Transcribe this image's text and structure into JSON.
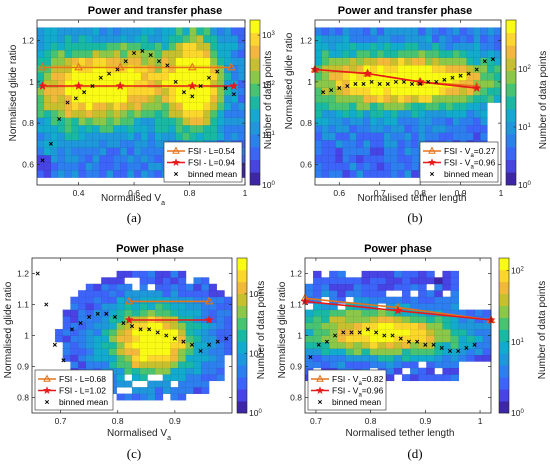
{
  "colormap": [
    "#3e26a8",
    "#4743e4",
    "#3d64f9",
    "#2d7fef",
    "#1f97db",
    "#12aacd",
    "#19b8a2",
    "#48c372",
    "#8bc84a",
    "#c6c02e",
    "#f0b93a",
    "#fbd72d",
    "#f9fb14"
  ],
  "chart_data": [
    {
      "panel": "(a)",
      "type": "heatmap",
      "title": "Power and transfer phase",
      "xlabel": "Normalised V",
      "xlabel_sub": "a",
      "ylabel": "Normalised glide ratio",
      "xlim": [
        0.25,
        1.0
      ],
      "ylim": [
        0.5,
        1.3
      ],
      "xticks": [
        0.4,
        0.6,
        0.8,
        1
      ],
      "xtick_labels": [
        "0.4",
        "0.6",
        "0.8",
        "1"
      ],
      "yticks": [
        0.6,
        0.8,
        1.0,
        1.2
      ],
      "ytick_labels": [
        "0.6",
        "0.8",
        "1",
        "1.2"
      ],
      "colorbar": {
        "label": "Number of data points",
        "scale": "log",
        "range": [
          1,
          2000
        ],
        "ticks": [
          {
            "t": "0",
            "e": 1
          },
          {
            "t": "1",
            "e": 10
          },
          {
            "t": "2",
            "e": 100
          },
          {
            "t": "3",
            "e": 1000
          }
        ]
      },
      "legend": {
        "position": "bottom-right",
        "entries": [
          {
            "label": "FSI - L=0.54",
            "marker": "triangle",
            "color": "#e5731a"
          },
          {
            "label": "FSI - L=0.94",
            "marker": "star",
            "color": "#e8191a"
          },
          {
            "label": "binned mean",
            "marker": "x",
            "color": "#000000"
          }
        ]
      },
      "fsi_lines": [
        {
          "color": "#e5731a",
          "marker": "triangle",
          "x": [
            0.27,
            0.4,
            0.55,
            0.81,
            0.95
          ],
          "y": [
            1.07,
            1.07,
            1.07,
            1.07,
            1.07
          ]
        },
        {
          "color": "#e8191a",
          "marker": "star",
          "x": [
            0.27,
            0.4,
            0.55,
            0.81,
            0.96
          ],
          "y": [
            0.98,
            0.98,
            0.98,
            0.98,
            0.98
          ]
        }
      ],
      "binned_mean": {
        "x": [
          0.27,
          0.3,
          0.33,
          0.36,
          0.39,
          0.42,
          0.45,
          0.48,
          0.51,
          0.54,
          0.57,
          0.6,
          0.63,
          0.66,
          0.69,
          0.72,
          0.75,
          0.78,
          0.81,
          0.84,
          0.87,
          0.9,
          0.93,
          0.96
        ],
        "y": [
          0.62,
          0.7,
          0.82,
          0.9,
          0.92,
          0.95,
          0.98,
          1.02,
          1.04,
          1.06,
          1.1,
          1.14,
          1.15,
          1.13,
          1.1,
          1.08,
          1.0,
          0.95,
          0.93,
          0.98,
          1.02,
          1.05,
          0.97,
          0.94
        ]
      }
    },
    {
      "panel": "(b)",
      "type": "heatmap",
      "title": "Power and transfer phase",
      "xlabel": "Normalised tether length",
      "xlabel_sub": "",
      "ylabel": "Normalised glide ratio",
      "xlim": [
        0.54,
        1.0
      ],
      "ylim": [
        0.5,
        1.3
      ],
      "xticks": [
        0.6,
        0.7,
        0.8,
        0.9,
        1
      ],
      "xtick_labels": [
        "0.6",
        "0.7",
        "0.8",
        "0.9",
        "1"
      ],
      "yticks": [
        0.6,
        0.8,
        1.0,
        1.2
      ],
      "ytick_labels": [
        "0.6",
        "0.8",
        "1",
        "1.2"
      ],
      "colorbar": {
        "label": "Number of data points",
        "scale": "log",
        "range": [
          1,
          700
        ],
        "ticks": [
          {
            "t": "0",
            "e": 1
          },
          {
            "t": "1",
            "e": 10
          },
          {
            "t": "2",
            "e": 100
          }
        ]
      },
      "legend": {
        "position": "bottom-right",
        "entries": [
          {
            "label": "FSI - V",
            "sub": "a",
            "suffix": "=0.27",
            "marker": "triangle",
            "color": "#e5731a"
          },
          {
            "label": "FSI - V",
            "sub": "a",
            "suffix": "=0.96",
            "marker": "star",
            "color": "#e8191a"
          },
          {
            "label": "binned mean",
            "marker": "x",
            "color": "#000000"
          }
        ]
      },
      "fsi_lines": [
        {
          "color": "#e5731a",
          "marker": "triangle",
          "x": [
            0.54,
            0.67,
            0.8,
            0.94
          ],
          "y": [
            1.06,
            1.04,
            1.0,
            0.98
          ]
        },
        {
          "color": "#e8191a",
          "marker": "star",
          "x": [
            0.54,
            0.67,
            0.8,
            0.94
          ],
          "y": [
            1.06,
            1.04,
            1.0,
            0.97
          ]
        }
      ],
      "binned_mean": {
        "x": [
          0.56,
          0.58,
          0.6,
          0.62,
          0.64,
          0.66,
          0.68,
          0.7,
          0.72,
          0.74,
          0.76,
          0.78,
          0.8,
          0.82,
          0.84,
          0.86,
          0.88,
          0.9,
          0.92,
          0.94,
          0.96,
          0.98
        ],
        "y": [
          0.95,
          0.96,
          0.97,
          0.98,
          0.99,
          0.99,
          1.0,
          0.99,
          0.99,
          1.0,
          1.0,
          0.99,
          0.99,
          1.0,
          1.0,
          1.01,
          1.02,
          1.03,
          1.04,
          1.06,
          1.1,
          1.11
        ]
      }
    },
    {
      "panel": "(c)",
      "type": "heatmap",
      "title": "Power phase",
      "xlabel": "Normalised V",
      "xlabel_sub": "a",
      "ylabel": "Normalised glide ratio",
      "xlim": [
        0.65,
        1.0
      ],
      "ylim": [
        0.75,
        1.25
      ],
      "xticks": [
        0.7,
        0.8,
        0.9
      ],
      "xtick_labels": [
        "0.7",
        "0.8",
        "0.9"
      ],
      "yticks": [
        0.8,
        0.9,
        1.0,
        1.1,
        1.2
      ],
      "ytick_labels": [
        "0.8",
        "0.9",
        "1",
        "1.1",
        "1.2"
      ],
      "colorbar": {
        "label": "Number of data points",
        "scale": "log",
        "range": [
          1,
          400
        ],
        "ticks": [
          {
            "t": "0",
            "e": 1
          },
          {
            "t": "1",
            "e": 10
          },
          {
            "t": "2",
            "e": 100
          }
        ]
      },
      "legend": {
        "position": "bottom-left",
        "entries": [
          {
            "label": "FSI - L=0.68",
            "marker": "triangle",
            "color": "#e5731a"
          },
          {
            "label": "FSI - L=1.02",
            "marker": "star",
            "color": "#e8191a"
          },
          {
            "label": "binned mean",
            "marker": "x",
            "color": "#000000"
          }
        ]
      },
      "fsi_lines": [
        {
          "color": "#e5731a",
          "marker": "triangle",
          "x": [
            0.82,
            0.96
          ],
          "y": [
            1.11,
            1.11
          ]
        },
        {
          "color": "#e8191a",
          "marker": "star",
          "x": [
            0.82,
            0.96
          ],
          "y": [
            1.05,
            1.05
          ]
        }
      ],
      "binned_mean": {
        "x": [
          0.66,
          0.675,
          0.69,
          0.705,
          0.72,
          0.735,
          0.75,
          0.765,
          0.78,
          0.795,
          0.81,
          0.825,
          0.84,
          0.855,
          0.87,
          0.885,
          0.9,
          0.915,
          0.93,
          0.945,
          0.96,
          0.975,
          0.99
        ],
        "y": [
          1.2,
          1.1,
          0.97,
          0.92,
          1.02,
          1.04,
          1.06,
          1.07,
          1.07,
          1.06,
          1.04,
          1.03,
          1.02,
          1.02,
          1.01,
          1.0,
          0.99,
          0.98,
          0.97,
          0.95,
          0.97,
          0.98,
          0.99
        ]
      }
    },
    {
      "panel": "(d)",
      "type": "heatmap",
      "title": "Power phase",
      "xlabel": "Normalised tether length",
      "xlabel_sub": "",
      "ylabel": "Normalised glide ratio",
      "xlim": [
        0.68,
        1.02
      ],
      "ylim": [
        0.75,
        1.25
      ],
      "xticks": [
        0.7,
        0.8,
        0.9,
        1
      ],
      "xtick_labels": [
        "0.7",
        "0.8",
        "0.9",
        "1"
      ],
      "yticks": [
        0.8,
        0.9,
        1.0,
        1.1,
        1.2
      ],
      "ytick_labels": [
        "0.8",
        "0.9",
        "1",
        "1.1",
        "1.2"
      ],
      "colorbar": {
        "label": "Number of data points",
        "scale": "log",
        "range": [
          1,
          150
        ],
        "ticks": [
          {
            "t": "0",
            "e": 1
          },
          {
            "t": "1",
            "e": 10
          },
          {
            "t": "2",
            "e": 100
          }
        ]
      },
      "legend": {
        "position": "bottom-left",
        "entries": [
          {
            "label": "FSI - V",
            "sub": "a",
            "suffix": "=0.82",
            "marker": "triangle",
            "color": "#e5731a"
          },
          {
            "label": "FSI - V",
            "sub": "a",
            "suffix": "=0.96",
            "marker": "star",
            "color": "#e8191a"
          },
          {
            "label": "binned mean",
            "marker": "x",
            "color": "#000000"
          }
        ]
      },
      "fsi_lines": [
        {
          "color": "#e5731a",
          "marker": "triangle",
          "x": [
            0.68,
            0.85,
            1.02
          ],
          "y": [
            1.12,
            1.09,
            1.05
          ]
        },
        {
          "color": "#e8191a",
          "marker": "star",
          "x": [
            0.68,
            0.85,
            1.02
          ],
          "y": [
            1.11,
            1.08,
            1.05
          ]
        }
      ],
      "binned_mean": {
        "x": [
          0.69,
          0.705,
          0.72,
          0.735,
          0.75,
          0.765,
          0.78,
          0.795,
          0.81,
          0.825,
          0.84,
          0.855,
          0.87,
          0.885,
          0.9,
          0.915,
          0.93,
          0.945,
          0.96,
          0.975,
          0.99
        ],
        "y": [
          0.93,
          0.97,
          0.98,
          1.0,
          1.01,
          1.01,
          1.01,
          1.02,
          1.01,
          1.0,
          1.0,
          0.99,
          0.98,
          0.98,
          0.97,
          0.97,
          0.96,
          0.95,
          0.95,
          0.96,
          0.97
        ]
      }
    }
  ]
}
